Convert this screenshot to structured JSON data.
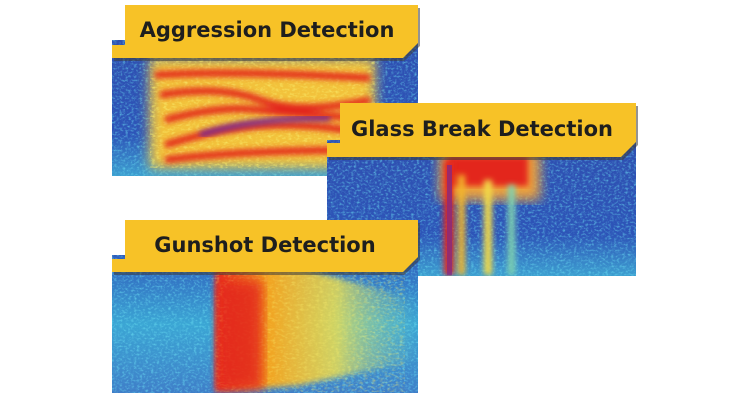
{
  "panels": [
    {
      "label": "Aggression Detection"
    },
    {
      "label": "Glass Break Detection"
    },
    {
      "label": "Gunshot Detection"
    }
  ]
}
